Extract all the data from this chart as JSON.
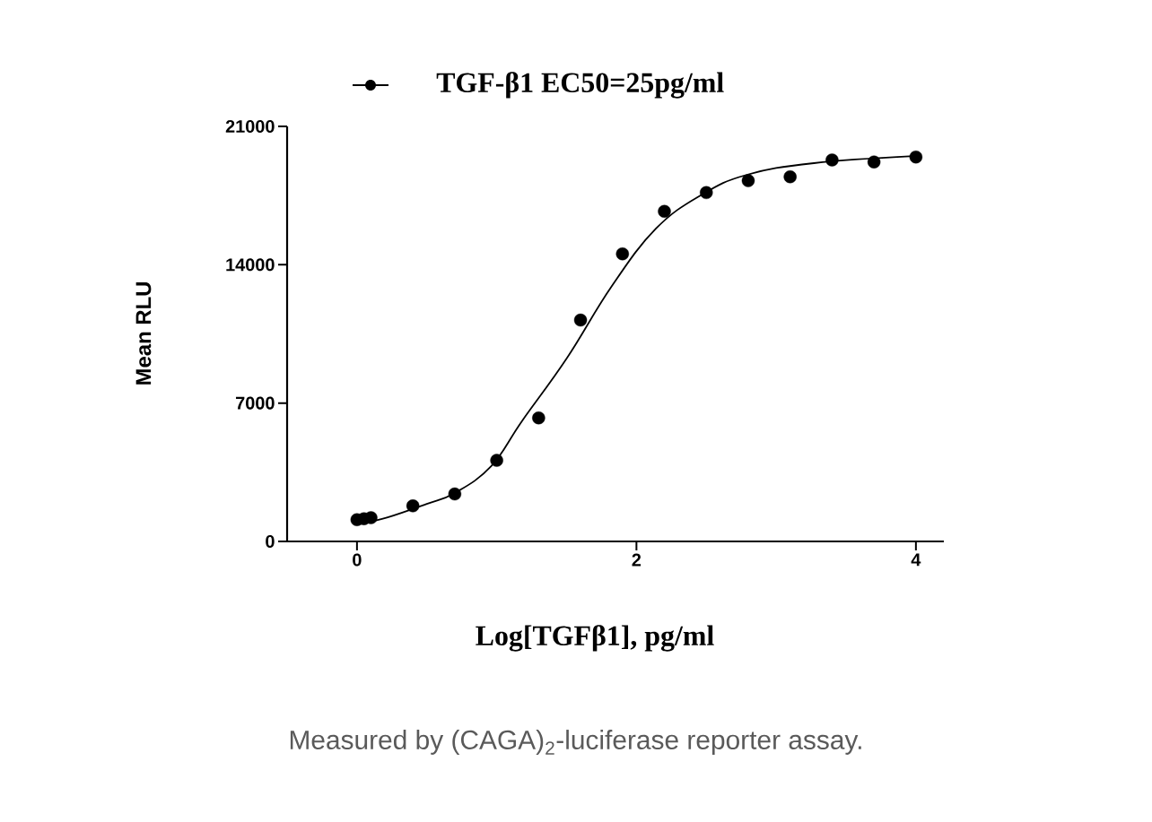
{
  "chart_data": {
    "type": "scatter",
    "xlabel": "Log[TGFβ1], pg/ml",
    "ylabel": "Mean RLU",
    "annotations": [
      "Measured by (CAGA)$_{2}$-luciferase reporter assay."
    ],
    "xlim": [
      -0.5,
      4.2
    ],
    "ylim": [
      0,
      21000
    ],
    "xticks": [
      0,
      2,
      4
    ],
    "yticks": [
      0,
      7000,
      14000,
      21000
    ],
    "legend": "top",
    "marker": "circle",
    "line_style": "solid",
    "series": [
      {
        "name": "TGF-β1 EC50=25pg/ml",
        "color": "#000000",
        "x": [
          0,
          0.05,
          0.1,
          0.4,
          0.7,
          1.0,
          1.3,
          1.6,
          1.9,
          2.2,
          2.5,
          2.8,
          3.1,
          3.4,
          3.7,
          4.0
        ],
        "values": [
          1100,
          1150,
          1200,
          1800,
          2400,
          4100,
          6250,
          11200,
          14550,
          16700,
          17650,
          18250,
          18450,
          19300,
          19200,
          19450
        ]
      },
      {
        "type": "line",
        "marker": "none",
        "color": "#000000",
        "x": [
          0,
          0.22,
          0.5,
          0.7,
          0.96,
          1.18,
          1.5,
          1.82,
          2.14,
          2.47,
          2.79,
          3.27,
          4.0
        ],
        "values": [
          860,
          1220,
          1900,
          2450,
          3800,
          6080,
          9250,
          12880,
          15830,
          17550,
          18550,
          19140,
          19500
        ]
      }
    ]
  }
}
